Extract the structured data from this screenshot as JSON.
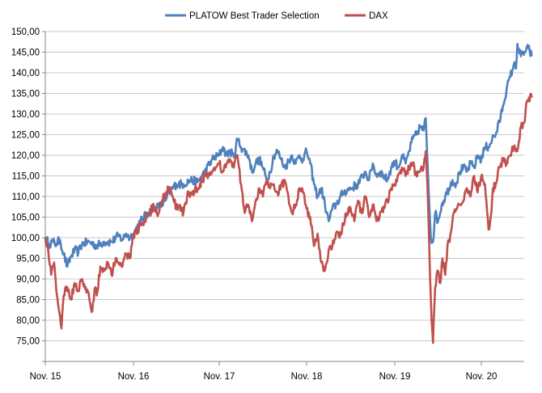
{
  "chart_data": {
    "type": "line",
    "title": "",
    "xlabel": "",
    "ylabel": "",
    "ylim": [
      75,
      150
    ],
    "y_ticks": [
      "75,00",
      "80,00",
      "85,00",
      "90,00",
      "95,00",
      "100,00",
      "105,00",
      "110,00",
      "115,00",
      "120,00",
      "125,00",
      "130,00",
      "135,00",
      "140,00",
      "145,00",
      "150,00"
    ],
    "x_ticks": [
      "Nov. 15",
      "Nov. 16",
      "Nov. 17",
      "Nov. 18",
      "Nov. 19",
      "Nov. 20"
    ],
    "y_min_axis": 70,
    "y_max_axis": 150,
    "grid": "horizontal",
    "legend_position": "top",
    "x_unit": "months since Nov. 15",
    "x_max": 67,
    "series": [
      {
        "name": "PLATOW Best Trader Selection",
        "color": "#4f81bd",
        "points": [
          [
            0,
            100
          ],
          [
            0.5,
            98.5
          ],
          [
            1,
            99
          ],
          [
            1.5,
            98.5
          ],
          [
            2,
            99.5
          ],
          [
            2.5,
            96
          ],
          [
            3,
            93
          ],
          [
            3.5,
            95.5
          ],
          [
            4,
            97
          ],
          [
            4.5,
            96.5
          ],
          [
            5,
            98.5
          ],
          [
            6,
            99
          ],
          [
            7,
            98
          ],
          [
            8,
            99
          ],
          [
            9,
            99
          ],
          [
            10,
            100.5
          ],
          [
            10.5,
            99.5
          ],
          [
            11,
            101
          ],
          [
            11.5,
            100
          ],
          [
            12,
            101
          ],
          [
            13,
            104
          ],
          [
            14,
            106
          ],
          [
            15,
            107
          ],
          [
            16,
            108
          ],
          [
            16.5,
            109
          ],
          [
            17,
            111
          ],
          [
            18,
            113
          ],
          [
            19,
            113
          ],
          [
            20,
            114
          ],
          [
            21,
            113.5
          ],
          [
            22,
            116
          ],
          [
            23,
            119
          ],
          [
            24,
            120
          ],
          [
            24.5,
            122
          ],
          [
            25,
            120
          ],
          [
            25.5,
            121
          ],
          [
            26,
            119.5
          ],
          [
            26.5,
            124
          ],
          [
            27,
            122
          ],
          [
            28,
            120
          ],
          [
            28.5,
            116
          ],
          [
            29,
            118
          ],
          [
            29.5,
            119
          ],
          [
            30,
            117
          ],
          [
            30.5,
            114
          ],
          [
            31,
            116
          ],
          [
            31.5,
            120
          ],
          [
            32,
            121
          ],
          [
            32.5,
            119
          ],
          [
            33,
            117
          ],
          [
            34,
            120
          ],
          [
            34.5,
            118
          ],
          [
            35,
            120
          ],
          [
            35.5,
            119
          ],
          [
            36,
            121
          ],
          [
            36.5,
            118
          ],
          [
            37,
            113
          ],
          [
            37.5,
            110
          ],
          [
            38,
            112
          ],
          [
            38.5,
            108
          ],
          [
            39,
            104
          ],
          [
            39.5,
            107
          ],
          [
            40,
            108
          ],
          [
            41,
            111
          ],
          [
            42,
            112
          ],
          [
            43,
            113
          ],
          [
            44,
            116
          ],
          [
            44.5,
            114
          ],
          [
            45,
            118
          ],
          [
            45.5,
            115
          ],
          [
            46,
            116
          ],
          [
            47,
            114
          ],
          [
            47.5,
            117
          ],
          [
            48,
            118.5
          ],
          [
            48.5,
            117
          ],
          [
            49,
            120
          ],
          [
            49.5,
            118
          ],
          [
            50,
            121
          ],
          [
            50.5,
            124
          ],
          [
            51,
            125
          ],
          [
            51.5,
            127
          ],
          [
            52,
            126
          ],
          [
            52.3,
            129
          ],
          [
            52.6,
            116
          ],
          [
            53,
            100
          ],
          [
            53.3,
            99
          ],
          [
            53.6,
            106
          ],
          [
            54,
            104
          ],
          [
            54.5,
            108
          ],
          [
            55,
            110
          ],
          [
            55.5,
            112
          ],
          [
            56,
            114
          ],
          [
            56.5,
            113
          ],
          [
            57,
            116
          ],
          [
            57.5,
            117
          ],
          [
            58,
            116
          ],
          [
            58.5,
            118
          ],
          [
            59,
            117
          ],
          [
            59.5,
            120
          ],
          [
            60,
            119
          ],
          [
            60.5,
            122
          ],
          [
            61,
            122
          ],
          [
            61.5,
            124
          ],
          [
            62,
            125
          ],
          [
            62.5,
            128
          ],
          [
            63,
            132
          ],
          [
            63.5,
            136
          ],
          [
            64,
            139
          ],
          [
            64.5,
            142
          ],
          [
            64.8,
            141
          ],
          [
            65,
            147
          ],
          [
            65.5,
            144
          ],
          [
            66,
            145
          ],
          [
            66.5,
            146
          ],
          [
            67,
            144
          ]
        ]
      },
      {
        "name": "DAX",
        "color": "#c0504d",
        "points": [
          [
            0,
            100
          ],
          [
            0.4,
            97
          ],
          [
            0.8,
            91
          ],
          [
            1.2,
            94
          ],
          [
            1.6,
            86
          ],
          [
            2,
            81
          ],
          [
            2.2,
            78
          ],
          [
            2.5,
            86
          ],
          [
            3,
            88
          ],
          [
            3.5,
            85
          ],
          [
            4,
            89
          ],
          [
            4.5,
            87
          ],
          [
            5,
            90
          ],
          [
            5.5,
            88
          ],
          [
            6,
            85
          ],
          [
            6.3,
            82
          ],
          [
            6.8,
            88
          ],
          [
            7,
            86
          ],
          [
            7.5,
            93
          ],
          [
            8,
            92
          ],
          [
            8.5,
            94
          ],
          [
            9,
            91
          ],
          [
            9.5,
            94
          ],
          [
            10,
            94
          ],
          [
            10.5,
            93
          ],
          [
            11,
            96
          ],
          [
            11.5,
            95
          ],
          [
            12,
            100.5
          ],
          [
            13,
            103
          ],
          [
            13.5,
            104
          ],
          [
            14,
            106
          ],
          [
            15,
            107.5
          ],
          [
            15.5,
            106
          ],
          [
            16,
            109
          ],
          [
            16.5,
            111
          ],
          [
            17,
            112
          ],
          [
            17.5,
            110
          ],
          [
            18,
            107
          ],
          [
            18.5,
            108
          ],
          [
            19,
            106
          ],
          [
            19.5,
            110
          ],
          [
            20,
            111
          ],
          [
            21,
            112
          ],
          [
            22,
            115
          ],
          [
            23,
            116
          ],
          [
            23.5,
            117
          ],
          [
            24,
            118
          ],
          [
            24.5,
            116
          ],
          [
            25,
            118
          ],
          [
            25.5,
            119
          ],
          [
            26,
            117
          ],
          [
            26.5,
            120
          ],
          [
            27,
            113
          ],
          [
            27.5,
            106
          ],
          [
            28,
            108
          ],
          [
            28.5,
            104
          ],
          [
            29,
            109
          ],
          [
            29.5,
            112
          ],
          [
            30,
            110
          ],
          [
            30.5,
            114
          ],
          [
            31,
            112
          ],
          [
            31.5,
            113
          ],
          [
            32,
            111
          ],
          [
            33,
            114
          ],
          [
            33.5,
            110
          ],
          [
            34,
            106
          ],
          [
            34.5,
            108
          ],
          [
            35,
            112
          ],
          [
            35.5,
            111
          ],
          [
            36,
            107
          ],
          [
            36.5,
            105
          ],
          [
            37,
            98
          ],
          [
            37.5,
            101
          ],
          [
            38,
            94
          ],
          [
            38.5,
            92
          ],
          [
            39,
            97
          ],
          [
            39.5,
            98
          ],
          [
            40,
            101
          ],
          [
            40.5,
            100
          ],
          [
            41,
            103
          ],
          [
            41.5,
            106
          ],
          [
            42,
            107
          ],
          [
            42.5,
            104
          ],
          [
            43,
            109
          ],
          [
            43.5,
            106
          ],
          [
            44,
            110
          ],
          [
            44.5,
            105
          ],
          [
            45,
            108
          ],
          [
            45.5,
            104
          ],
          [
            46,
            106
          ],
          [
            47,
            109
          ],
          [
            47.5,
            112
          ],
          [
            48,
            113
          ],
          [
            49,
            117
          ],
          [
            49.5,
            115
          ],
          [
            50,
            117
          ],
          [
            50.5,
            118
          ],
          [
            51,
            115
          ],
          [
            51.5,
            116
          ],
          [
            52,
            117
          ],
          [
            52.3,
            121
          ],
          [
            52.6,
            109
          ],
          [
            52.9,
            90
          ],
          [
            53.1,
            80
          ],
          [
            53.3,
            74.5
          ],
          [
            53.6,
            88
          ],
          [
            54,
            92
          ],
          [
            54.3,
            89
          ],
          [
            54.6,
            95
          ],
          [
            55,
            91
          ],
          [
            55.3,
            98
          ],
          [
            55.6,
            99
          ],
          [
            56,
            104
          ],
          [
            56.5,
            107
          ],
          [
            57,
            108
          ],
          [
            57.5,
            109
          ],
          [
            58,
            112
          ],
          [
            58.5,
            110
          ],
          [
            59,
            115
          ],
          [
            59.5,
            111
          ],
          [
            60,
            115
          ],
          [
            60.5,
            113
          ],
          [
            60.7,
            109
          ],
          [
            61,
            102
          ],
          [
            61.3,
            105
          ],
          [
            61.6,
            112
          ],
          [
            62,
            113
          ],
          [
            62.5,
            117
          ],
          [
            63,
            119
          ],
          [
            63.5,
            118
          ],
          [
            64,
            120
          ],
          [
            64.5,
            122
          ],
          [
            65,
            121
          ],
          [
            65.5,
            127
          ],
          [
            66,
            128
          ],
          [
            66.3,
            133
          ],
          [
            66.6,
            134
          ],
          [
            67,
            134
          ]
        ]
      }
    ]
  }
}
